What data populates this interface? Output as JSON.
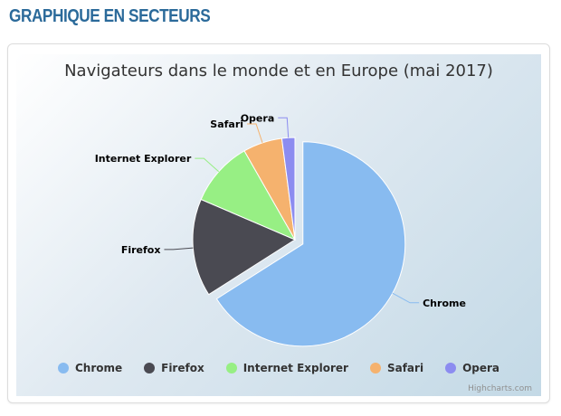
{
  "page": {
    "section_title": "GRAPHIQUE EN SECTEURS"
  },
  "chart_data": {
    "type": "pie",
    "title": "Navigateurs dans le monde et en Europe (mai 2017)",
    "series": [
      {
        "name": "Chrome",
        "value": 64,
        "color": "#88bbf0",
        "sliced": true
      },
      {
        "name": "Firefox",
        "value": 15,
        "color": "#4a4a52",
        "sliced": false
      },
      {
        "name": "Internet Explorer",
        "value": 10,
        "color": "#97ef84",
        "sliced": false
      },
      {
        "name": "Safari",
        "value": 6,
        "color": "#f5b26e",
        "sliced": false
      },
      {
        "name": "Opera",
        "value": 2,
        "color": "#8c8cf0",
        "sliced": false
      }
    ],
    "legend_position": "bottom",
    "credits": "Highcharts.com"
  }
}
